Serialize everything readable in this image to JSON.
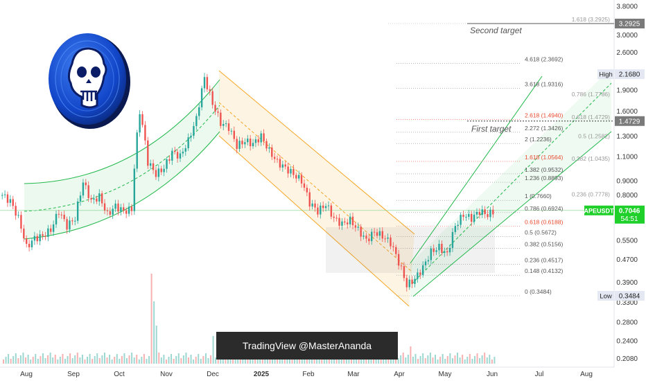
{
  "colors": {
    "up": "#26a69a",
    "down": "#ef5350",
    "channel": "#1fb84a",
    "down_channel": "#f5a623",
    "fib_label": "#555555",
    "fib_red": "#e8492e",
    "last_price_bg": "#1fcf2a"
  },
  "chart_data": {
    "type": "candlestick",
    "symbol": "APEUSDT",
    "y_scale": "log",
    "x_ticks": [
      "Aug",
      "Sep",
      "Oct",
      "Nov",
      "Dec",
      "2025",
      "Feb",
      "Mar",
      "Apr",
      "May",
      "Jun",
      "Jul",
      "Aug"
    ],
    "y_ticks": [
      "3.8000",
      "3.0000",
      "2.6000",
      "2.2000",
      "1.9000",
      "1.6000",
      "1.3000",
      "1.1000",
      "0.9000",
      "0.8000",
      "0.6500",
      "0.5500",
      "0.4700",
      "0.3900",
      "0.3300",
      "0.2800",
      "0.2400",
      "0.2080"
    ],
    "price_badges": [
      {
        "label": "",
        "value": "3.2925"
      },
      {
        "label": "",
        "value": "1.4729"
      },
      {
        "label": "High",
        "value": "2.1680"
      },
      {
        "label": "Low",
        "value": "0.3484"
      },
      {
        "label": "APEUSDT",
        "value": "0.7046",
        "countdown": "54:51"
      }
    ],
    "fib_levels_main": [
      {
        "label": "4.618 (2.3692)",
        "price": 2.3692,
        "red": false
      },
      {
        "label": "3.618 (1.9316)",
        "price": 1.9316,
        "red": false
      },
      {
        "label": "2.618 (1.4940)",
        "price": 1.494,
        "red": true
      },
      {
        "label": "2.272 (1.3426)",
        "price": 1.3426,
        "red": false
      },
      {
        "label": "2 (1.2236)",
        "price": 1.2236,
        "red": false
      },
      {
        "label": "1.618 (1.0564)",
        "price": 1.0564,
        "red": true
      },
      {
        "label": "1.382 (0.9532)",
        "price": 0.9532,
        "red": false
      },
      {
        "label": "1.236 (0.8893)",
        "price": 0.8893,
        "red": false
      },
      {
        "label": "1 (0.7660)",
        "price": 0.766,
        "red": false
      },
      {
        "label": "0.786 (0.6924)",
        "price": 0.6924,
        "red": false
      },
      {
        "label": "0.618 (0.6188)",
        "price": 0.6188,
        "red": true
      },
      {
        "label": "0.5 (0.5672)",
        "price": 0.5672,
        "red": false
      },
      {
        "label": "0.382 (0.5156)",
        "price": 0.5156,
        "red": false
      },
      {
        "label": "0.236 (0.4517)",
        "price": 0.4517,
        "red": false
      },
      {
        "label": "0.148 (0.4132)",
        "price": 0.4132,
        "red": false
      },
      {
        "label": "0 (0.3484)",
        "price": 0.3484,
        "red": false
      }
    ],
    "fib_levels_secondary": [
      {
        "label": "1.618 (3.2925)",
        "price": 3.2925,
        "red": false
      },
      {
        "label": "0.786 (1.7786)",
        "price": 1.7786,
        "red": false
      },
      {
        "label": "0.618 (1.4729)",
        "price": 1.4729,
        "red": false
      },
      {
        "label": "0.5 (1.2582)",
        "price": 1.2582,
        "red": false
      },
      {
        "label": "0.382 (1.0435)",
        "price": 1.0435,
        "red": false
      },
      {
        "label": "0.236 (0.7778)",
        "price": 0.7778,
        "red": false
      }
    ],
    "targets": [
      {
        "label": "Second target",
        "price": 3.2925
      },
      {
        "label": "First target",
        "price": 1.4729
      }
    ],
    "price_path_close": [
      0.8,
      0.76,
      0.66,
      0.52,
      0.56,
      0.57,
      0.6,
      0.7,
      0.62,
      0.66,
      0.89,
      0.76,
      0.79,
      0.68,
      0.73,
      0.7,
      0.71,
      1.6,
      1.05,
      0.95,
      1.0,
      1.14,
      1.1,
      1.25,
      1.5,
      2.1,
      1.7,
      1.45,
      1.4,
      1.2,
      1.25,
      1.22,
      1.3,
      1.15,
      1.05,
      1.0,
      0.95,
      0.9,
      0.75,
      0.7,
      0.74,
      0.66,
      0.63,
      0.65,
      0.6,
      0.55,
      0.59,
      0.57,
      0.54,
      0.46,
      0.38,
      0.4,
      0.44,
      0.5,
      0.52,
      0.49,
      0.62,
      0.68,
      0.66,
      0.7,
      0.68,
      0.7046
    ]
  },
  "watermark": "TradingView @MasterAnanda"
}
